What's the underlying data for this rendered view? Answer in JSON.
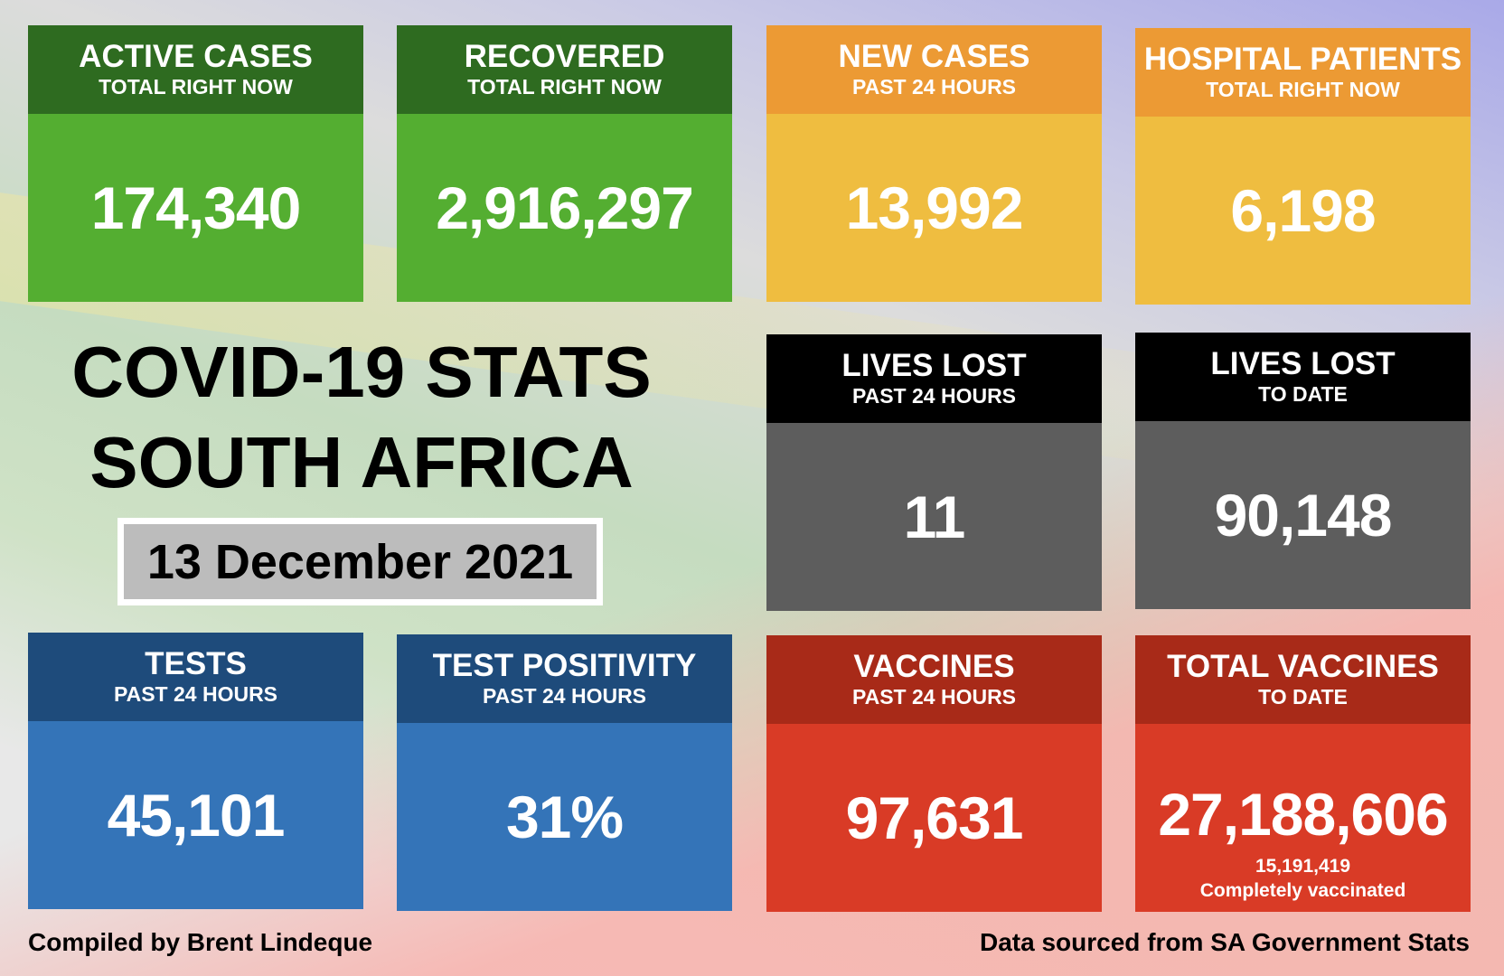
{
  "title": {
    "line1": "COVID-19 STATS",
    "line2": "SOUTH AFRICA",
    "date": "13 December 2021"
  },
  "cards": [
    {
      "title": "ACTIVE CASES",
      "sub": "TOTAL RIGHT NOW",
      "value": "174,340"
    },
    {
      "title": "RECOVERED",
      "sub": "TOTAL RIGHT NOW",
      "value": "2,916,297"
    },
    {
      "title": "NEW CASES",
      "sub": "PAST 24 HOURS",
      "value": "13,992"
    },
    {
      "title": "HOSPITAL PATIENTS",
      "sub": "TOTAL RIGHT NOW",
      "value": "6,198"
    },
    {
      "title": "LIVES LOST",
      "sub": "PAST 24 HOURS",
      "value": "11"
    },
    {
      "title": "LIVES LOST",
      "sub": "TO DATE",
      "value": "90,148"
    },
    {
      "title": "TESTS",
      "sub": "PAST 24 HOURS",
      "value": "45,101"
    },
    {
      "title": "TEST POSITIVITY",
      "sub": "PAST 24 HOURS",
      "value": "31%"
    },
    {
      "title": "VACCINES",
      "sub": "PAST 24 HOURS",
      "value": "97,631"
    },
    {
      "title": "TOTAL VACCINES",
      "sub": "TO DATE",
      "value": "27,188,606",
      "extra1": "15,191,419",
      "extra2": "Completely vaccinated"
    }
  ],
  "footer": {
    "left": "Compiled by Brent Lindeque",
    "right": "Data sourced from SA Government Stats"
  }
}
